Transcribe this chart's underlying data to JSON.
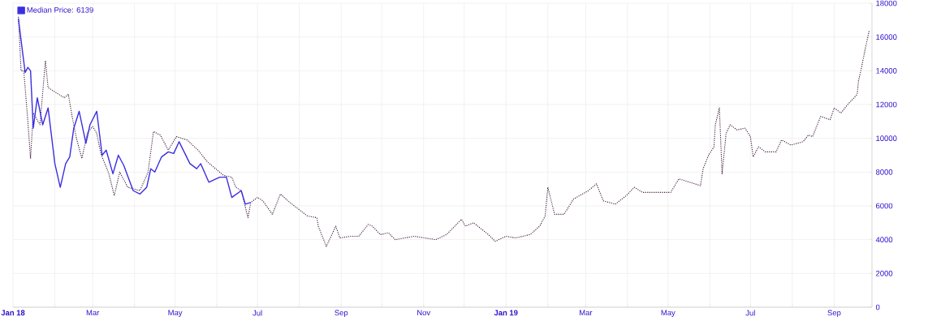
{
  "chart_data": {
    "type": "line",
    "series": [
      {
        "color": "#3d1a3a",
        "line_style": "dotted",
        "x": [
          "2018-01-05",
          "2018-01-07",
          "2018-01-09",
          "2018-01-12",
          "2018-01-14",
          "2018-01-16",
          "2018-01-21",
          "2018-01-25",
          "2018-01-27",
          "2018-02-02",
          "2018-02-08",
          "2018-02-11",
          "2018-02-14",
          "2018-02-17",
          "2018-02-21",
          "2018-02-25",
          "2018-03-01",
          "2018-03-04",
          "2018-03-07",
          "2018-03-13",
          "2018-03-17",
          "2018-03-21",
          "2018-03-27",
          "2018-04-05",
          "2018-04-11",
          "2018-04-15",
          "2018-04-20",
          "2018-04-26",
          "2018-05-02",
          "2018-05-10",
          "2018-05-18",
          "2018-05-25",
          "2018-05-31",
          "2018-06-06",
          "2018-06-12",
          "2018-06-15",
          "2018-06-19",
          "2018-06-24",
          "2018-06-26",
          "2018-07-01",
          "2018-07-05",
          "2018-07-12",
          "2018-07-18",
          "2018-07-25",
          "2018-08-07",
          "2018-08-14",
          "2018-08-15",
          "2018-08-21",
          "2018-08-28",
          "2018-08-31",
          "2018-09-08",
          "2018-09-14",
          "2018-09-21",
          "2018-09-24",
          "2018-09-30",
          "2018-10-06",
          "2018-10-11",
          "2018-10-25",
          "2018-11-10",
          "2018-11-18",
          "2018-11-29",
          "2018-12-02",
          "2018-12-08",
          "2018-12-19",
          "2018-12-24",
          "2019-01-01",
          "2019-01-08",
          "2019-01-19",
          "2019-01-26",
          "2019-01-30",
          "2019-02-01",
          "2019-02-06",
          "2019-02-13",
          "2019-02-20",
          "2019-03-03",
          "2019-03-09",
          "2019-03-14",
          "2019-03-23",
          "2019-03-31",
          "2019-04-06",
          "2019-04-12",
          "2019-04-24",
          "2019-05-03",
          "2019-05-09",
          "2019-05-25",
          "2019-05-27",
          "2019-05-31",
          "2019-06-04",
          "2019-06-05",
          "2019-06-08",
          "2019-06-10",
          "2019-06-13",
          "2019-06-16",
          "2019-06-21",
          "2019-06-27",
          "2019-07-01",
          "2019-07-03",
          "2019-07-07",
          "2019-07-12",
          "2019-07-20",
          "2019-07-24",
          "2019-07-31",
          "2019-08-09",
          "2019-08-13",
          "2019-08-16",
          "2019-08-22",
          "2019-08-29",
          "2019-09-01",
          "2019-09-06",
          "2019-09-11",
          "2019-09-18",
          "2019-09-19",
          "2019-09-21",
          "2019-09-24",
          "2019-09-27"
        ],
        "values": [
          17200,
          14000,
          14000,
          11000,
          8800,
          11500,
          10800,
          14600,
          13000,
          12700,
          12400,
          12600,
          11200,
          10000,
          8800,
          10300,
          10700,
          10300,
          9100,
          7900,
          6600,
          8000,
          7100,
          6900,
          8000,
          10400,
          10200,
          9300,
          10100,
          9900,
          9300,
          8600,
          8200,
          7800,
          7700,
          7100,
          6900,
          5300,
          6200,
          6500,
          6300,
          5500,
          6700,
          6200,
          5400,
          5300,
          4800,
          3600,
          4800,
          4100,
          4200,
          4200,
          4900,
          4800,
          4300,
          4400,
          4000,
          4200,
          4000,
          4300,
          5200,
          4800,
          5000,
          4300,
          3900,
          4200,
          4100,
          4300,
          4800,
          5400,
          7100,
          5500,
          5500,
          6400,
          6900,
          7300,
          6300,
          6100,
          6600,
          7100,
          6800,
          6800,
          6800,
          7600,
          7200,
          8200,
          9000,
          9500,
          10800,
          11800,
          7900,
          10300,
          10800,
          10500,
          10600,
          10100,
          8900,
          9500,
          9200,
          9200,
          9900,
          9600,
          9800,
          10200,
          10100,
          11300,
          11100,
          11800,
          11500,
          12000,
          12600,
          13400,
          14100,
          15300,
          16400
        ]
      },
      {
        "name": "Median Price: 6139",
        "color": "#3a2ee0",
        "line_style": "solid",
        "x": [
          "2018-01-05",
          "2018-01-07",
          "2018-01-10",
          "2018-01-12",
          "2018-01-14",
          "2018-01-16",
          "2018-01-19",
          "2018-01-23",
          "2018-01-25",
          "2018-01-27",
          "2018-02-01",
          "2018-02-05",
          "2018-02-09",
          "2018-02-12",
          "2018-02-15",
          "2018-02-19",
          "2018-02-24",
          "2018-02-27",
          "2018-03-04",
          "2018-03-08",
          "2018-03-11",
          "2018-03-16",
          "2018-03-20",
          "2018-03-24",
          "2018-03-31",
          "2018-04-05",
          "2018-04-10",
          "2018-04-13",
          "2018-04-16",
          "2018-04-21",
          "2018-04-26",
          "2018-04-30",
          "2018-05-04",
          "2018-05-12",
          "2018-05-17",
          "2018-05-20",
          "2018-05-26",
          "2018-06-03",
          "2018-06-08",
          "2018-06-12",
          "2018-06-19",
          "2018-06-22",
          "2018-06-26"
        ],
        "values": [
          17100,
          15800,
          13900,
          14200,
          14000,
          10600,
          12400,
          10800,
          11300,
          11800,
          8500,
          7100,
          8500,
          8900,
          10600,
          11600,
          9700,
          10800,
          11600,
          9000,
          9300,
          7900,
          9000,
          8400,
          6900,
          6700,
          7100,
          8200,
          8000,
          8900,
          9200,
          9100,
          9800,
          8500,
          8200,
          8500,
          7400,
          7700,
          7700,
          6500,
          6900,
          6100,
          6200
        ]
      }
    ],
    "xlim": [
      "2018-01-01",
      "2019-09-29"
    ],
    "xticks": [
      {
        "value": "2018-01",
        "label": "Jan 18"
      },
      {
        "value": "2018-02",
        "label": null
      },
      {
        "value": "2018-03",
        "label": "Mar"
      },
      {
        "value": "2018-04",
        "label": null
      },
      {
        "value": "2018-05",
        "label": "May"
      },
      {
        "value": "2018-06",
        "label": null
      },
      {
        "value": "2018-07",
        "label": "Jul"
      },
      {
        "value": "2018-08",
        "label": null
      },
      {
        "value": "2018-09",
        "label": "Sep"
      },
      {
        "value": "2018-10",
        "label": null
      },
      {
        "value": "2018-11",
        "label": "Nov"
      },
      {
        "value": "2018-12",
        "label": null
      },
      {
        "value": "2019-01",
        "label": "Jan 19"
      },
      {
        "value": "2019-02",
        "label": null
      },
      {
        "value": "2019-03",
        "label": "Mar"
      },
      {
        "value": "2019-04",
        "label": null
      },
      {
        "value": "2019-05",
        "label": "May"
      },
      {
        "value": "2019-06",
        "label": null
      },
      {
        "value": "2019-07",
        "label": "Jul"
      },
      {
        "value": "2019-08",
        "label": null
      },
      {
        "value": "2019-09",
        "label": "Sep"
      }
    ],
    "ylim": [
      0,
      18000
    ],
    "yticks": [
      0,
      2000,
      4000,
      6000,
      8000,
      10000,
      12000,
      14000,
      16000,
      18000
    ],
    "grid": true,
    "legend": "top left",
    "marker": "none"
  }
}
